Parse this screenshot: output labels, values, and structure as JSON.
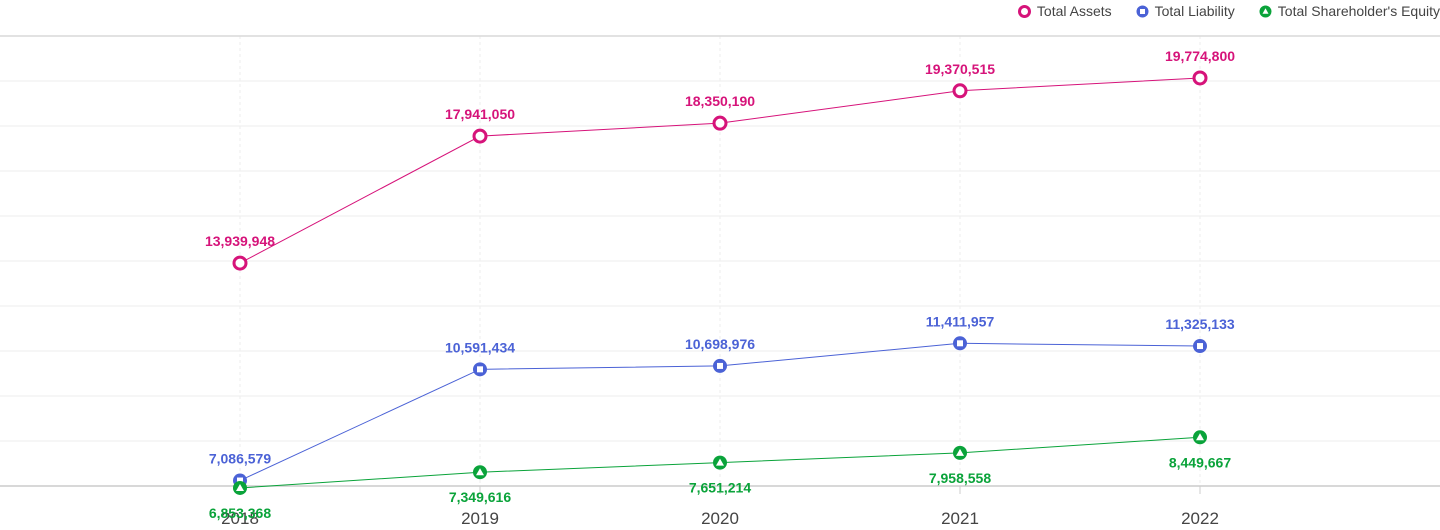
{
  "chart_data": {
    "type": "line",
    "title": "",
    "xlabel": "",
    "ylabel": "",
    "categories": [
      "2018",
      "2019",
      "2020",
      "2021",
      "2022"
    ],
    "ylim": [
      0,
      22000000
    ],
    "grid": true,
    "legend_position": "top-right",
    "series": [
      {
        "name": "Total Assets",
        "color": "#d6137a",
        "marker": "circle-icon",
        "values": [
          13939948,
          17941050,
          18350190,
          19370515,
          19774800
        ],
        "labels": [
          "13,939,948",
          "17,941,050",
          "18,350,190",
          "19,370,515",
          "19,774,800"
        ],
        "label_side": "above"
      },
      {
        "name": "Total Liability",
        "color": "#4b62d6",
        "marker": "square-icon",
        "values": [
          7086579,
          10591434,
          10698976,
          11411957,
          11325133
        ],
        "labels": [
          "7,086,579",
          "10,591,434",
          "10,698,976",
          "11,411,957",
          "11,325,133"
        ],
        "label_side": "above"
      },
      {
        "name": "Total Shareholder's Equity",
        "color": "#0aa33a",
        "marker": "triangle-icon",
        "values": [
          6853368,
          7349616,
          7651214,
          7958558,
          8449667
        ],
        "labels": [
          "6,853,368",
          "7,349,616",
          "7,651,214",
          "7,958,558",
          "8,449,667"
        ],
        "label_side": "below"
      }
    ]
  }
}
